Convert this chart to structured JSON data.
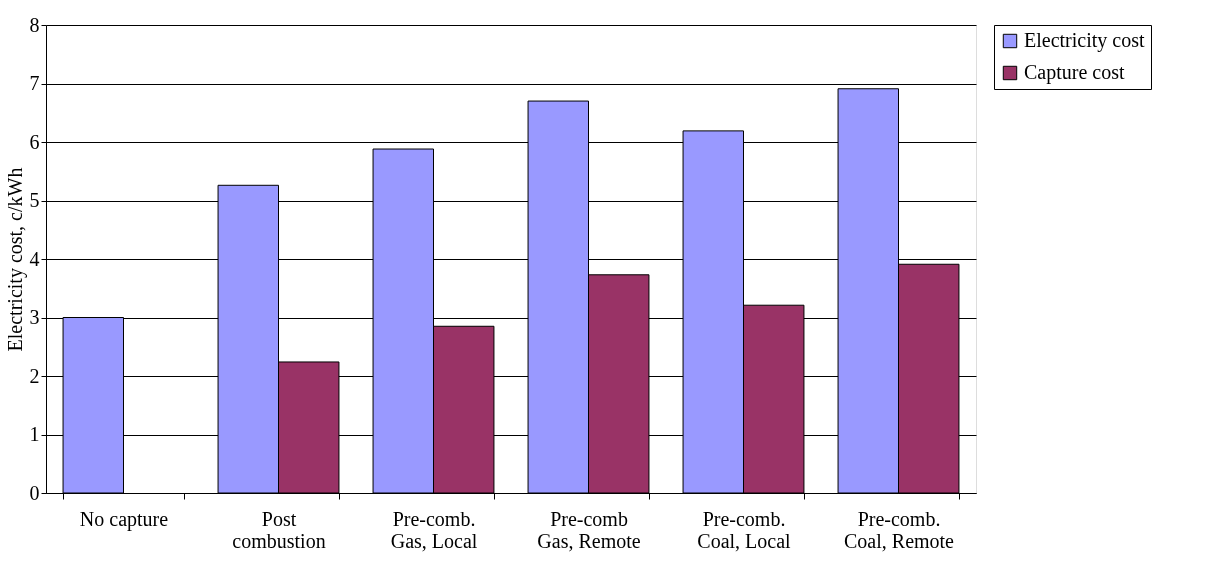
{
  "chart_data": {
    "type": "bar",
    "ylabel": "Electricity cost, c/kWh",
    "categories": [
      "No capture",
      "Post\ncombustion",
      "Pre-comb.\nGas, Local",
      "Pre-comb\nGas, Remote",
      "Pre-comb.\nCoal, Local",
      "Pre-comb.\nCoal, Remote"
    ],
    "series": [
      {
        "name": "Electricity cost",
        "color": "#9999ff",
        "values": [
          3.0,
          5.26,
          5.88,
          6.7,
          6.19,
          6.91
        ]
      },
      {
        "name": "Capture cost",
        "color": "#993366",
        "values": [
          null,
          2.24,
          2.85,
          3.73,
          3.21,
          3.91
        ]
      }
    ],
    "ylim": [
      0,
      8
    ],
    "yticks": [
      0,
      1,
      2,
      3,
      4,
      5,
      6,
      7,
      8
    ],
    "grid": "y",
    "legend": "right"
  }
}
